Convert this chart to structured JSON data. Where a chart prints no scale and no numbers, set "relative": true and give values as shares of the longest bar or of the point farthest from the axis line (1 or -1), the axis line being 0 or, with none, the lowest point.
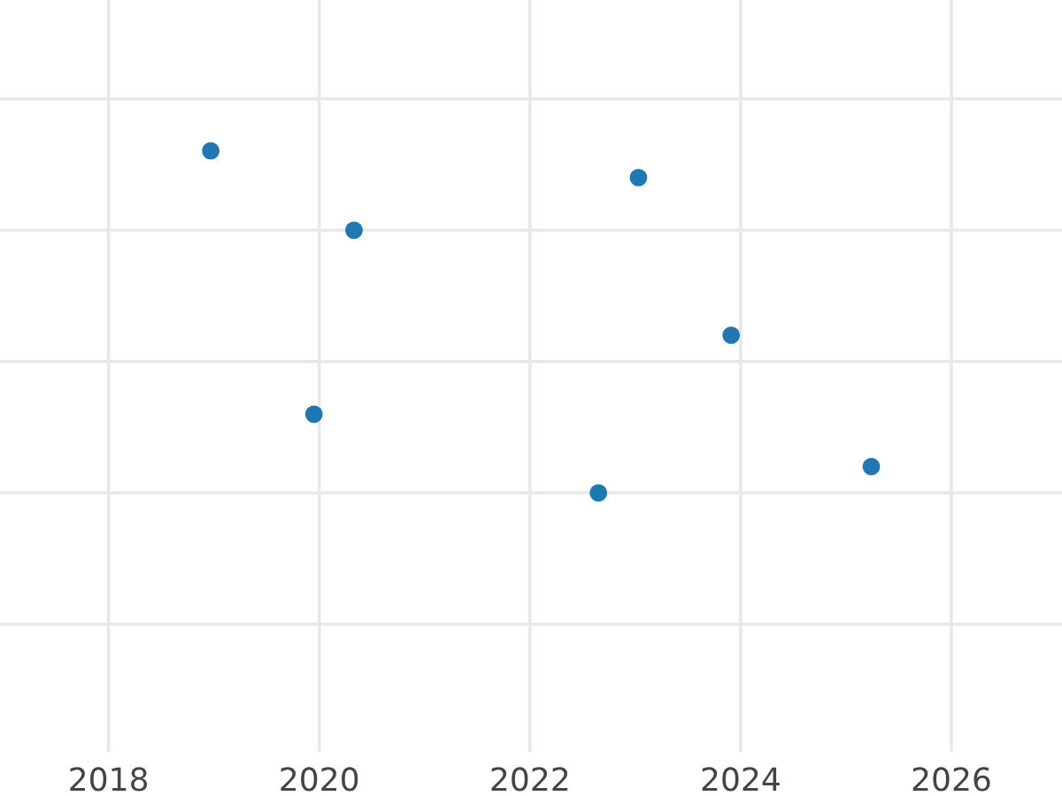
{
  "chart_data": {
    "type": "scatter",
    "relative": true,
    "color": "#1f77b4",
    "grid": true,
    "marker": "circle",
    "x": [
      2018.97,
      2020.33,
      2019.95,
      2022.65,
      2023.03,
      2023.91,
      2025.24
    ],
    "values": [
      1,
      0.768,
      0.23,
      0,
      0.922,
      0.461,
      0.077
    ],
    "xlim": [
      2016.97,
      2027.05
    ],
    "xticks": [
      2018,
      2020,
      2022,
      2024,
      2026
    ]
  }
}
